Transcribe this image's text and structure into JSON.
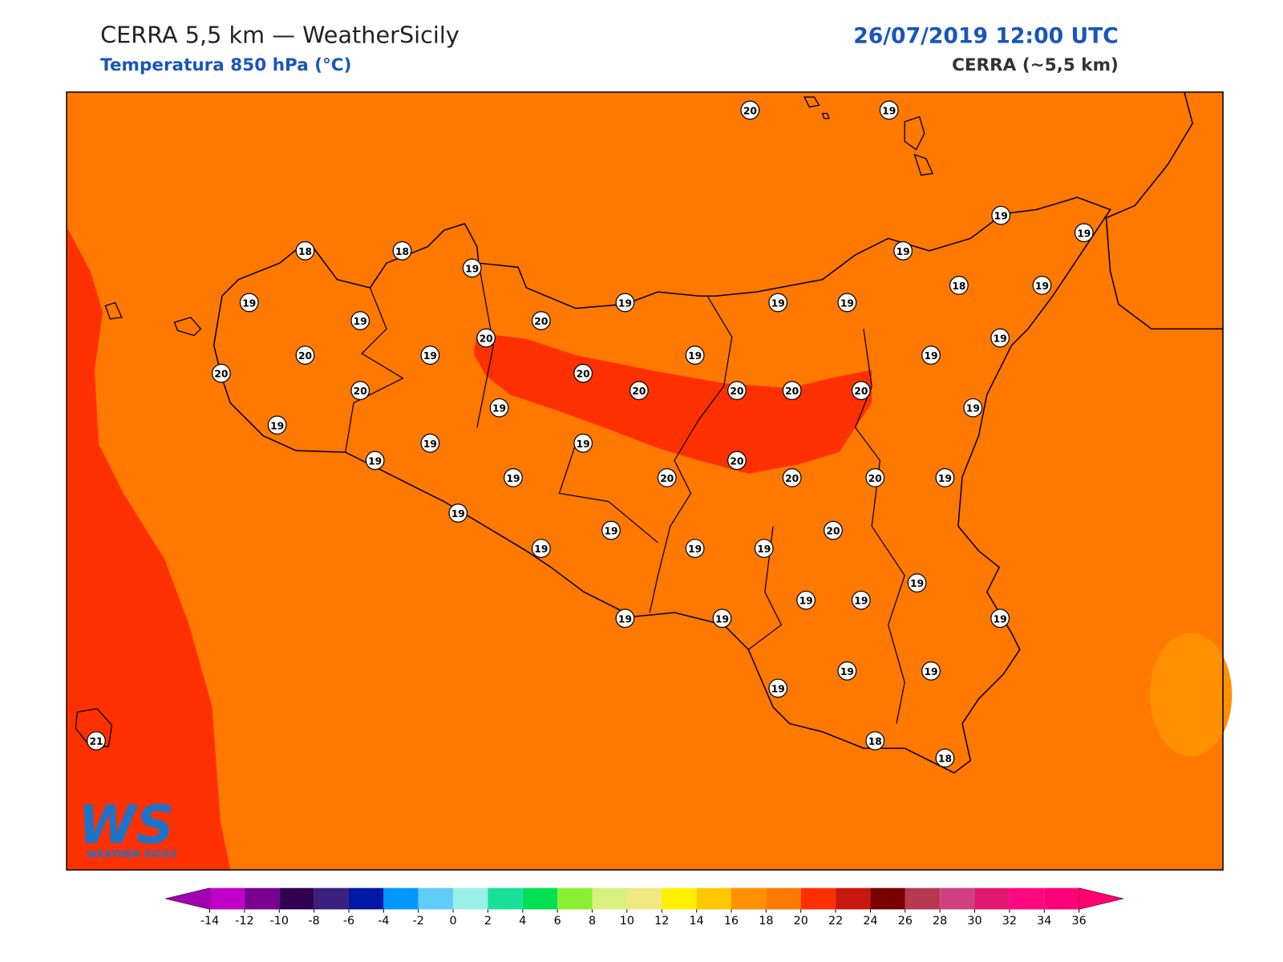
{
  "header": {
    "title": "CERRA 5,5 km — WeatherSicily",
    "subtitle": "Temperatura 850 hPa (°C)",
    "datetime": "26/07/2019 12:00 UTC",
    "model": "CERRA (~5,5 km)"
  },
  "logo": {
    "text": "WS",
    "name": "WEATHER SICILY"
  },
  "stations": {
    "values": [
      20,
      19,
      19,
      19,
      18,
      18,
      19,
      19,
      18,
      19,
      19,
      19,
      19,
      19,
      19,
      20,
      20,
      19,
      20,
      19,
      19,
      19,
      20,
      20,
      20,
      20,
      20,
      20,
      20,
      19,
      19,
      19,
      19,
      19,
      19,
      20,
      19,
      20,
      20,
      20,
      19,
      19,
      20,
      19,
      19,
      19,
      19,
      19,
      19,
      19,
      19,
      19,
      19,
      19,
      19,
      19,
      18,
      18,
      21
    ]
  },
  "colorbar": {
    "ticks": [
      -14,
      -12,
      -10,
      -8,
      -6,
      -4,
      -2,
      0,
      2,
      4,
      6,
      8,
      10,
      12,
      14,
      16,
      18,
      20,
      22,
      24,
      26,
      28,
      30,
      32,
      34,
      36
    ],
    "colors": [
      "#c000c8",
      "#7a0090",
      "#300050",
      "#3c2080",
      "#0018a8",
      "#0098ff",
      "#60ccf8",
      "#98f0e8",
      "#18e098",
      "#00e050",
      "#88f030",
      "#d8f080",
      "#f0e880",
      "#fff000",
      "#ffc800",
      "#ff9000",
      "#ff7800",
      "#ff3000",
      "#c81810",
      "#780000",
      "#b83850",
      "#d04080",
      "#e01870",
      "#ff0880",
      "#ff0078"
    ],
    "under_color": "#a000b0",
    "over_color": "#ff0070"
  }
}
